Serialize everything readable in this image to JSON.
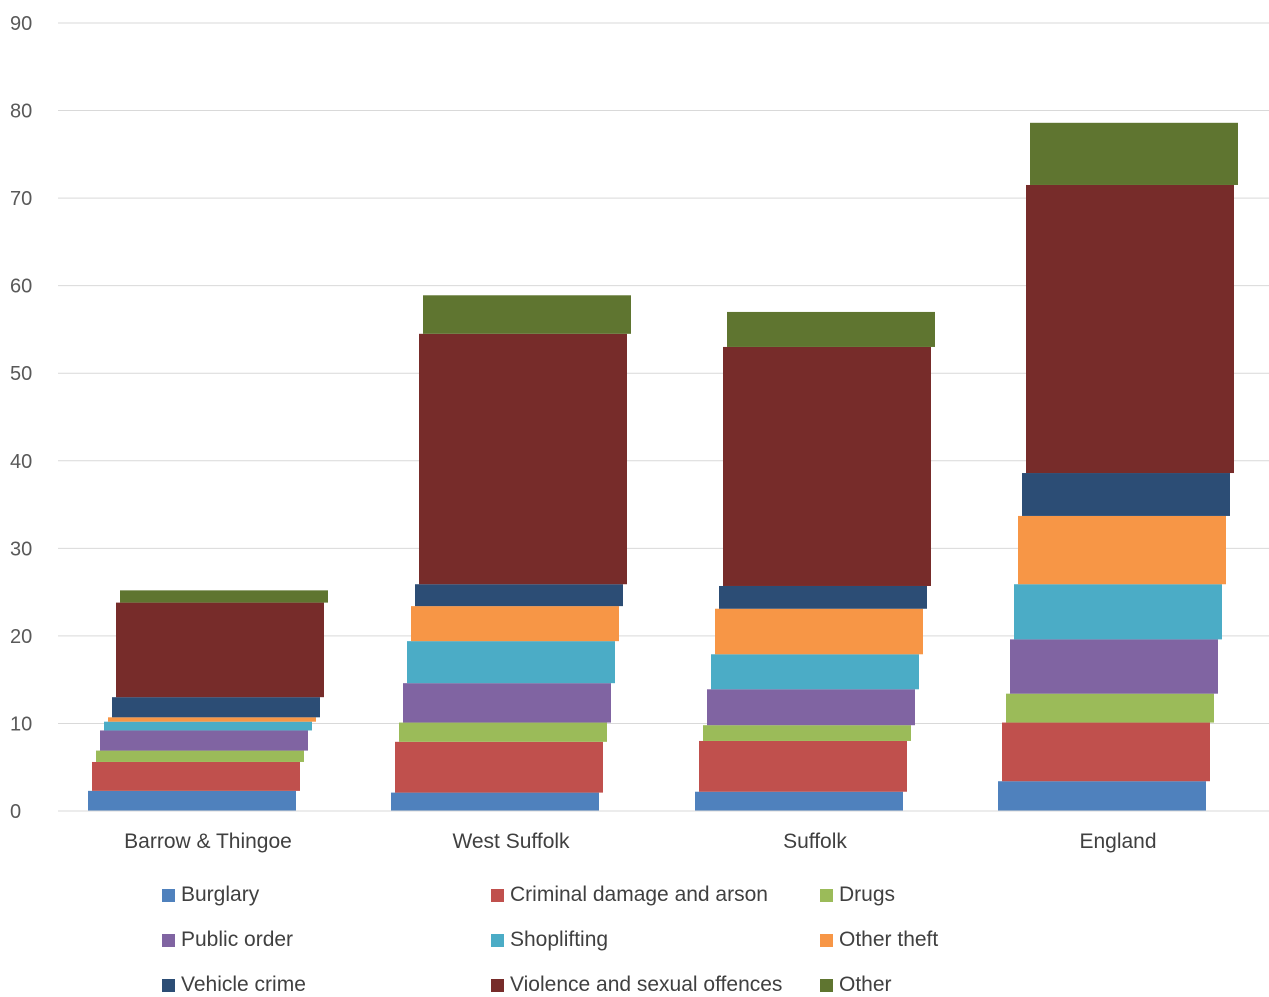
{
  "chart_data": {
    "type": "bar",
    "stacked": true,
    "title": "",
    "xlabel": "",
    "ylabel": "",
    "ylim": [
      0,
      90
    ],
    "yticks": [
      "0",
      "10",
      "20",
      "30",
      "40",
      "50",
      "60",
      "70",
      "80",
      "90"
    ],
    "grid": true,
    "legend_position": "bottom",
    "categories": [
      "Barrow & Thingoe",
      "West Suffolk",
      "Suffolk",
      "England"
    ],
    "series": [
      {
        "name": "Burglary",
        "color": "#4F81BD",
        "values": [
          2.3,
          2.1,
          2.2,
          3.4
        ]
      },
      {
        "name": "Criminal damage and arson",
        "color": "#C0504D",
        "values": [
          3.3,
          5.8,
          5.8,
          6.7
        ]
      },
      {
        "name": "Drugs",
        "color": "#9BBB59",
        "values": [
          1.3,
          2.2,
          1.8,
          3.3
        ]
      },
      {
        "name": "Public order",
        "color": "#8064A2",
        "values": [
          2.3,
          4.5,
          4.1,
          6.2
        ]
      },
      {
        "name": "Shoplifting",
        "color": "#4BACC6",
        "values": [
          1.0,
          4.8,
          4.0,
          6.3
        ]
      },
      {
        "name": "Other theft",
        "color": "#F79646",
        "values": [
          0.5,
          4.0,
          5.2,
          7.8
        ]
      },
      {
        "name": "Vehicle crime",
        "color": "#2C4D75",
        "values": [
          2.3,
          2.5,
          2.6,
          4.9
        ]
      },
      {
        "name": "Violence and sexual offences",
        "color": "#772C2A",
        "values": [
          10.8,
          28.6,
          27.3,
          32.9
        ]
      },
      {
        "name": "Other",
        "color": "#5F7530",
        "values": [
          1.4,
          4.4,
          4.0,
          7.1
        ]
      }
    ]
  }
}
